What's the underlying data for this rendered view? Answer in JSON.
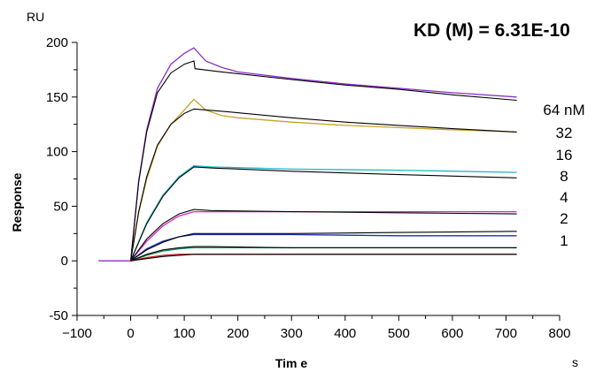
{
  "chart_data": {
    "type": "line",
    "title": "KD (M) = 6.31E-10",
    "ylabel": "Response",
    "xlabel": "Tim e",
    "y_unit": "RU",
    "x_unit": "s",
    "xlim": [
      -100,
      800
    ],
    "ylim": [
      -50,
      200
    ],
    "x_ticks": [
      -100,
      0,
      100,
      200,
      300,
      400,
      500,
      600,
      700,
      800
    ],
    "x_tick_labels": [
      "−100",
      "0",
      "100",
      "200",
      "300",
      "400",
      "500",
      "600",
      "700",
      "800"
    ],
    "y_ticks": [
      -50,
      0,
      50,
      100,
      150,
      200
    ],
    "y_tick_labels": [
      "-50",
      "0",
      "50",
      "100",
      "150",
      "200"
    ],
    "concentration_labels": [
      "64 nM",
      "32",
      "16",
      "8",
      "4",
      "2",
      "1"
    ],
    "series": [
      {
        "color": "#8B2FC9",
        "fit_color": "#000000",
        "data": [
          [
            -60,
            0
          ],
          [
            0,
            0
          ],
          [
            15,
            73
          ],
          [
            30,
            120
          ],
          [
            50,
            158
          ],
          [
            75,
            180
          ],
          [
            100,
            190
          ],
          [
            118,
            195
          ],
          [
            140,
            183
          ],
          [
            170,
            177
          ],
          [
            200,
            173
          ],
          [
            300,
            167
          ],
          [
            400,
            162
          ],
          [
            500,
            158
          ],
          [
            600,
            154
          ],
          [
            720,
            150
          ]
        ],
        "fit": [
          [
            0,
            0
          ],
          [
            15,
            72
          ],
          [
            30,
            118
          ],
          [
            50,
            154
          ],
          [
            75,
            172
          ],
          [
            100,
            180
          ],
          [
            118,
            183
          ],
          [
            120,
            176
          ],
          [
            170,
            173
          ],
          [
            300,
            166
          ],
          [
            400,
            161
          ],
          [
            500,
            157
          ],
          [
            600,
            152
          ],
          [
            720,
            147
          ]
        ]
      },
      {
        "color": "#C9A227",
        "fit_color": "#000000",
        "data": [
          [
            0,
            0
          ],
          [
            15,
            44
          ],
          [
            30,
            75
          ],
          [
            50,
            105
          ],
          [
            75,
            125
          ],
          [
            100,
            138
          ],
          [
            118,
            148
          ],
          [
            140,
            138
          ],
          [
            170,
            133
          ],
          [
            200,
            131
          ],
          [
            300,
            127
          ],
          [
            400,
            124
          ],
          [
            500,
            122
          ],
          [
            600,
            120
          ],
          [
            720,
            118
          ]
        ],
        "fit": [
          [
            0,
            0
          ],
          [
            15,
            45
          ],
          [
            30,
            77
          ],
          [
            50,
            106
          ],
          [
            75,
            125
          ],
          [
            100,
            135
          ],
          [
            118,
            139
          ],
          [
            120,
            139
          ],
          [
            170,
            137
          ],
          [
            300,
            131
          ],
          [
            400,
            127
          ],
          [
            500,
            124
          ],
          [
            600,
            121
          ],
          [
            720,
            118
          ]
        ]
      },
      {
        "color": "#1EB8C9",
        "fit_color": "#000000",
        "data": [
          [
            0,
            0
          ],
          [
            30,
            35
          ],
          [
            60,
            60
          ],
          [
            90,
            77
          ],
          [
            118,
            87
          ],
          [
            150,
            86
          ],
          [
            300,
            84
          ],
          [
            500,
            83
          ],
          [
            720,
            81
          ]
        ],
        "fit": [
          [
            0,
            0
          ],
          [
            30,
            34
          ],
          [
            60,
            59
          ],
          [
            90,
            76
          ],
          [
            118,
            86
          ],
          [
            150,
            85
          ],
          [
            300,
            82
          ],
          [
            500,
            79
          ],
          [
            720,
            76
          ]
        ]
      },
      {
        "color": "#E020C8",
        "fit_color": "#000000",
        "data": [
          [
            0,
            0
          ],
          [
            30,
            18
          ],
          [
            60,
            32
          ],
          [
            90,
            41
          ],
          [
            118,
            45
          ],
          [
            150,
            45
          ],
          [
            300,
            45
          ],
          [
            500,
            45
          ],
          [
            720,
            45
          ]
        ],
        "fit": [
          [
            0,
            0
          ],
          [
            30,
            20
          ],
          [
            60,
            34
          ],
          [
            90,
            43
          ],
          [
            118,
            47
          ],
          [
            150,
            46
          ],
          [
            300,
            45
          ],
          [
            500,
            44
          ],
          [
            720,
            43
          ]
        ]
      },
      {
        "color": "#1A2FB8",
        "fit_color": "#000000",
        "data": [
          [
            0,
            0
          ],
          [
            30,
            11
          ],
          [
            60,
            18
          ],
          [
            90,
            22
          ],
          [
            118,
            24
          ],
          [
            150,
            24
          ],
          [
            300,
            24
          ],
          [
            500,
            23
          ],
          [
            720,
            23
          ]
        ],
        "fit": [
          [
            0,
            0
          ],
          [
            30,
            10
          ],
          [
            60,
            17
          ],
          [
            90,
            22
          ],
          [
            118,
            25
          ],
          [
            150,
            25
          ],
          [
            300,
            25
          ],
          [
            500,
            26
          ],
          [
            720,
            27
          ]
        ]
      },
      {
        "color": "#1A8A5A",
        "fit_color": "#000000",
        "data": [
          [
            0,
            0
          ],
          [
            30,
            5
          ],
          [
            60,
            9
          ],
          [
            90,
            11
          ],
          [
            118,
            12
          ],
          [
            150,
            12
          ],
          [
            300,
            12
          ],
          [
            500,
            12
          ],
          [
            720,
            12
          ]
        ],
        "fit": [
          [
            0,
            0
          ],
          [
            30,
            6
          ],
          [
            60,
            10
          ],
          [
            90,
            12
          ],
          [
            118,
            13
          ],
          [
            150,
            13
          ],
          [
            300,
            12
          ],
          [
            500,
            12
          ],
          [
            720,
            12
          ]
        ]
      },
      {
        "color": "#C81E1E",
        "fit_color": "#000000",
        "data": [
          [
            0,
            0
          ],
          [
            30,
            3
          ],
          [
            60,
            5
          ],
          [
            90,
            6
          ],
          [
            118,
            6
          ],
          [
            150,
            6
          ],
          [
            300,
            6
          ],
          [
            500,
            6
          ],
          [
            720,
            6
          ]
        ],
        "fit": [
          [
            0,
            0
          ],
          [
            30,
            2
          ],
          [
            60,
            4
          ],
          [
            90,
            5
          ],
          [
            118,
            6
          ],
          [
            150,
            6
          ],
          [
            300,
            6
          ],
          [
            500,
            6
          ],
          [
            720,
            6
          ]
        ]
      }
    ]
  }
}
